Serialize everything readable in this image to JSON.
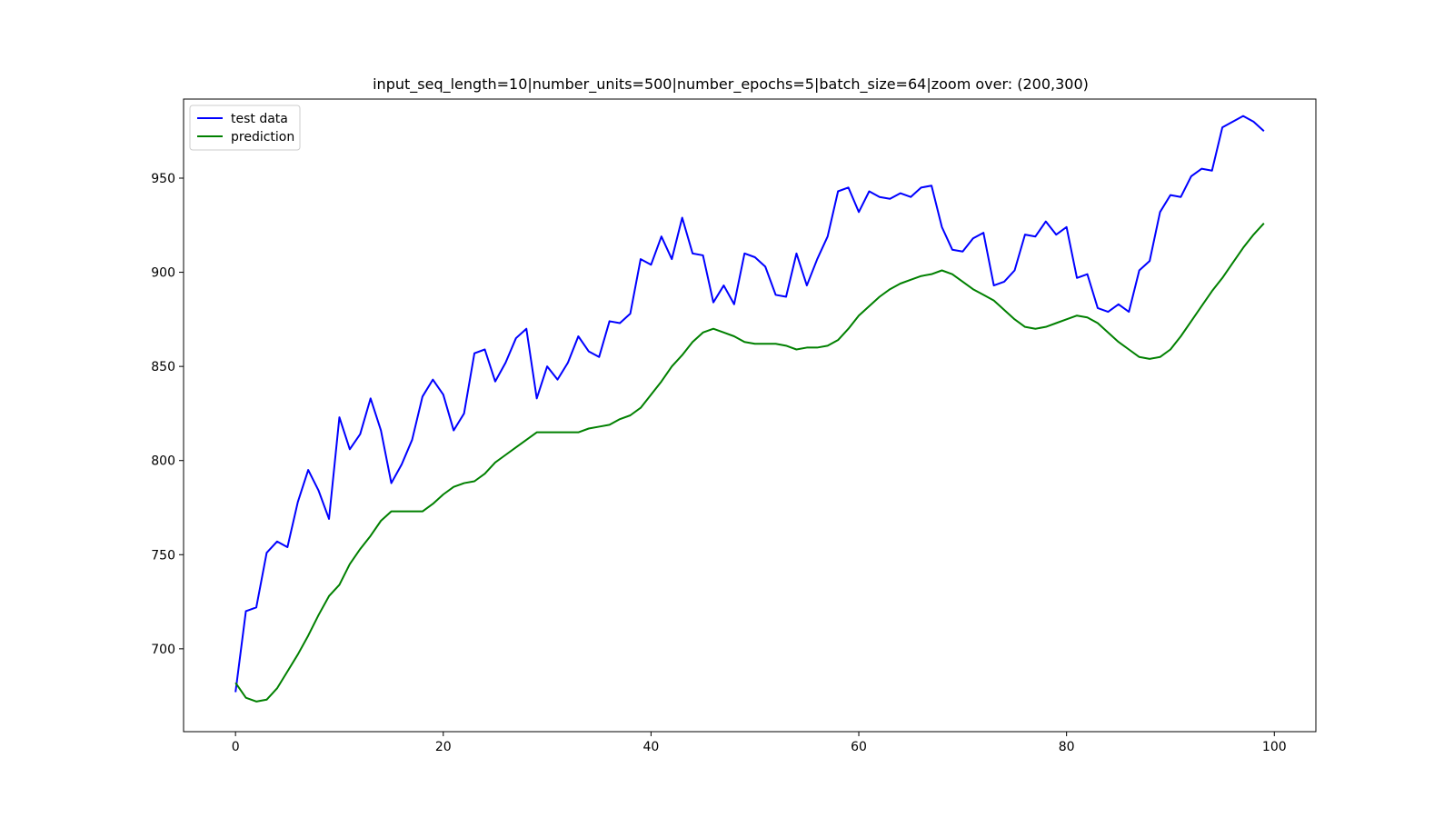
{
  "chart_data": {
    "type": "line",
    "title": "input_seq_length=10|number_units=500|number_epochs=5|batch_size=64|zoom over: (200,300)",
    "xlabel": "",
    "ylabel": "",
    "xlim": [
      -5,
      104
    ],
    "ylim": [
      656,
      992
    ],
    "xticks": [
      0,
      20,
      40,
      60,
      80,
      100
    ],
    "yticks": [
      700,
      750,
      800,
      850,
      900,
      950
    ],
    "grid": false,
    "legend_position": "top-left",
    "series": [
      {
        "name": "test data",
        "color": "#0000ff",
        "values": [
          677,
          720,
          722,
          751,
          757,
          754,
          778,
          795,
          784,
          769,
          823,
          806,
          814,
          833,
          816,
          788,
          798,
          811,
          834,
          843,
          835,
          816,
          825,
          857,
          859,
          842,
          852,
          865,
          870,
          833,
          850,
          843,
          852,
          866,
          858,
          855,
          874,
          873,
          878,
          907,
          904,
          919,
          907,
          929,
          910,
          909,
          884,
          893,
          883,
          910,
          908,
          903,
          888,
          887,
          910,
          893,
          907,
          919,
          943,
          945,
          932,
          943,
          940,
          939,
          942,
          940,
          945,
          946,
          924,
          912,
          911,
          918,
          921,
          893,
          895,
          901,
          920,
          919,
          927,
          920,
          924,
          897,
          899,
          881,
          879,
          883,
          879,
          901,
          906,
          932,
          941,
          940,
          951,
          955,
          954,
          977,
          980,
          983,
          980,
          975
        ]
      },
      {
        "name": "prediction",
        "color": "#008000",
        "values": [
          682,
          674,
          672,
          673,
          679,
          688,
          697,
          707,
          718,
          728,
          734,
          745,
          753,
          760,
          768,
          773,
          773,
          773,
          773,
          777,
          782,
          786,
          788,
          789,
          793,
          799,
          803,
          807,
          811,
          815,
          815,
          815,
          815,
          815,
          817,
          818,
          819,
          822,
          824,
          828,
          835,
          842,
          850,
          856,
          863,
          868,
          870,
          868,
          866,
          863,
          862,
          862,
          862,
          861,
          859,
          860,
          860,
          861,
          864,
          870,
          877,
          882,
          887,
          891,
          894,
          896,
          898,
          899,
          901,
          899,
          895,
          891,
          888,
          885,
          880,
          875,
          871,
          870,
          871,
          873,
          875,
          877,
          876,
          873,
          868,
          863,
          859,
          855,
          854,
          855,
          859,
          866,
          874,
          882,
          890,
          897,
          905,
          913,
          920,
          926
        ]
      }
    ]
  }
}
